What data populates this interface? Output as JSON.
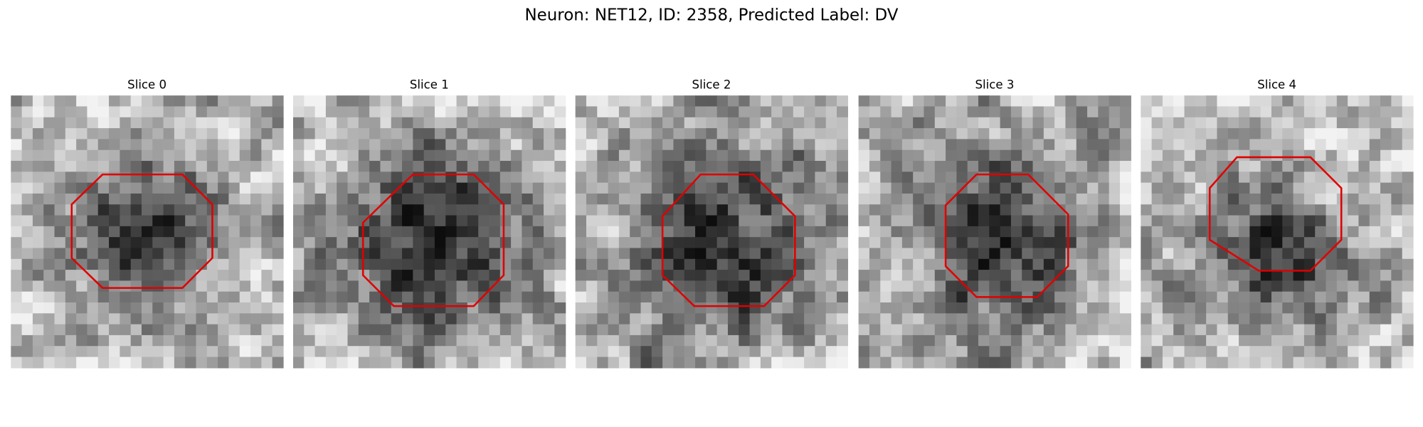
{
  "title": "Neuron: NET12, ID: 2358, Predicted Label: DV",
  "panels": [
    {
      "title": "Slice 0"
    },
    {
      "title": "Slice 1"
    },
    {
      "title": "Slice 2"
    },
    {
      "title": "Slice 3"
    },
    {
      "title": "Slice 4"
    }
  ]
}
